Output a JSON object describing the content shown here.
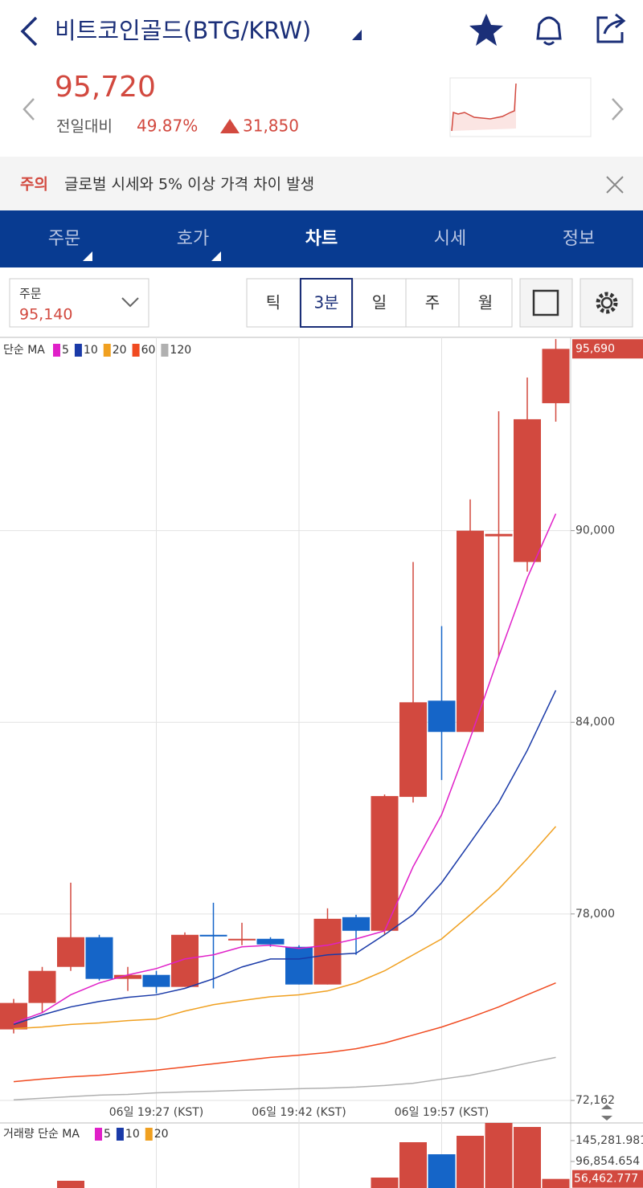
{
  "header": {
    "title": "비트코인골드(BTG/KRW)",
    "price": "95,720",
    "change_label": "전일대비",
    "change_rate": "49.87%",
    "change_amount": "31,850"
  },
  "notice": {
    "label": "주의",
    "text": "글로벌 시세와 5% 이상 가격 차이 발생"
  },
  "tabs": [
    "주문",
    "호가",
    "차트",
    "시세",
    "정보"
  ],
  "order": {
    "label": "주문",
    "price": "95,140"
  },
  "intervals": [
    "틱",
    "3분",
    "일",
    "주",
    "월"
  ],
  "chart_data": [
    {
      "type": "candlestick",
      "legend_title": "단순 MA",
      "categories": [
        null,
        null,
        null,
        null,
        null,
        "06일 19:27 (KST)",
        null,
        null,
        null,
        null,
        "06일 19:42 (KST)",
        null,
        null,
        null,
        null,
        "06일 19:57 (KST)",
        null,
        null,
        null,
        null
      ],
      "open": [
        74386,
        75214,
        76343,
        77272,
        75967,
        76092,
        75716,
        77347,
        77172,
        77222,
        76971,
        75791,
        77900,
        77473,
        81665,
        84677,
        83698,
        89822,
        89019,
        93989
      ],
      "high": [
        75340,
        76343,
        78979,
        77347,
        76343,
        76218,
        77423,
        78351,
        77724,
        77272,
        77021,
        78176,
        77975,
        81740,
        89019,
        87011,
        90977,
        93738,
        94792,
        95997
      ],
      "low": [
        74260,
        74913,
        76218,
        75917,
        75590,
        75515,
        75716,
        75670,
        77021,
        76971,
        75791,
        75791,
        76720,
        77347,
        81489,
        82192,
        83698,
        86057,
        88718,
        93411
      ],
      "close": [
        75214,
        76218,
        77272,
        75967,
        76092,
        75716,
        77347,
        77297,
        77222,
        77046,
        75791,
        77849,
        77473,
        81690,
        84626,
        83698,
        89998,
        89897,
        93487,
        95690
      ],
      "last_label": "95,690",
      "up_color": "#d2493f",
      "down_color": "#1565c8",
      "series": [
        {
          "name": "5",
          "color": "#e020c8",
          "values": [
            74590,
            74910,
            75470,
            75840,
            76090,
            76290,
            76590,
            76720,
            76970,
            77020,
            76920,
            77020,
            77220,
            77470,
            79480,
            81110,
            83500,
            86060,
            88520,
            90530
          ]
        },
        {
          "name": "10",
          "color": "#1a3aa8",
          "values": [
            74540,
            74840,
            75090,
            75260,
            75390,
            75470,
            75670,
            75970,
            76340,
            76590,
            76590,
            76720,
            76770,
            77350,
            77980,
            78980,
            80230,
            81490,
            83120,
            85000
          ]
        },
        {
          "name": "20",
          "color": "#f0a020",
          "values": [
            74410,
            74460,
            74540,
            74590,
            74660,
            74710,
            74960,
            75160,
            75290,
            75410,
            75470,
            75590,
            75840,
            76220,
            76720,
            77220,
            77980,
            78780,
            79730,
            80740
          ]
        },
        {
          "name": "60",
          "color": "#f04a20",
          "values": [
            72750,
            72830,
            72900,
            72950,
            73030,
            73110,
            73210,
            73310,
            73410,
            73510,
            73580,
            73660,
            73780,
            73960,
            74210,
            74460,
            74760,
            75090,
            75470,
            75840
          ]
        },
        {
          "name": "120",
          "color": "#b0b0b0",
          "values": [
            72180,
            72230,
            72280,
            72330,
            72350,
            72400,
            72430,
            72450,
            72480,
            72500,
            72530,
            72550,
            72580,
            72630,
            72700,
            72830,
            72950,
            73130,
            73330,
            73510
          ]
        }
      ],
      "ylim": [
        72162,
        96050
      ],
      "yticks": [
        {
          "value": 72162,
          "label": "72,162"
        },
        {
          "value": 78000,
          "label": "78,000"
        },
        {
          "value": 84000,
          "label": "84,000"
        },
        {
          "value": 90000,
          "label": "90,000"
        }
      ],
      "grid": true
    },
    {
      "type": "bar",
      "legend_title": "거래량 단순 MA",
      "legend": [
        {
          "name": "5",
          "color": "#e020c8"
        },
        {
          "name": "10",
          "color": "#1a3aa8"
        },
        {
          "name": "20",
          "color": "#f0a020"
        }
      ],
      "values": [
        null,
        null,
        52140,
        null,
        null,
        null,
        null,
        null,
        null,
        null,
        null,
        null,
        null,
        59580,
        141510,
        113580,
        156410,
        186200,
        176890,
        56462.777
      ],
      "last_label": "56,462.777",
      "ylim": [
        0,
        186200
      ],
      "yticks": [
        {
          "value": 145281.981,
          "label": "145,281.981"
        },
        {
          "value": 96854.654,
          "label": "96,854.654"
        }
      ]
    }
  ]
}
